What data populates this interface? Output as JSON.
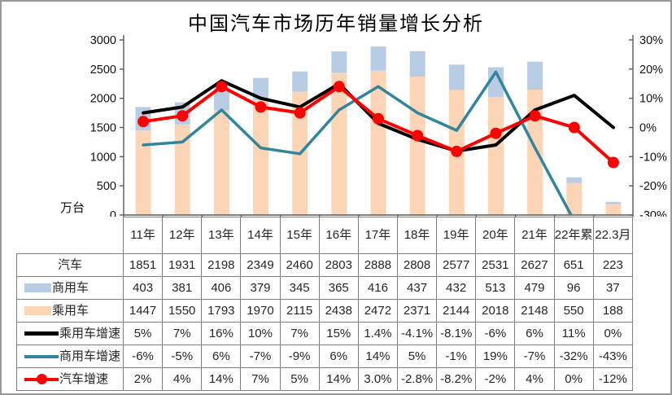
{
  "frame": {
    "title": "中国汽车市场历年销量增长分析",
    "unit_label": "万台"
  },
  "colors": {
    "passenger_bar": "#FBD5B5",
    "commercial_bar": "#B8CCE4",
    "passenger_growth_line": "#000000",
    "commercial_growth_line": "#31859C",
    "auto_growth_line": "#FF0000",
    "axis": "#595959",
    "table_border": "#7f7f7f",
    "text": "#262626"
  },
  "chart_data": {
    "type": "combo-stacked-bar-line",
    "title": "中国汽车市场历年销量增长分析",
    "categories": [
      "11年",
      "12年",
      "13年",
      "14年",
      "15年",
      "16年",
      "17年",
      "18年",
      "19年",
      "20年",
      "21年",
      "22年累",
      "22.3月"
    ],
    "left_axis": {
      "label": "万台",
      "min": 0,
      "max": 3000,
      "step": 500,
      "ticks": [
        "0",
        "500",
        "1000",
        "1500",
        "2000",
        "2500",
        "3000"
      ]
    },
    "right_axis": {
      "min": -30,
      "max": 30,
      "step": 10,
      "ticks": [
        "30%",
        "20%",
        "10%",
        "0%",
        "-10%",
        "-20%",
        "-30%"
      ]
    },
    "grid": false,
    "legend_position": "table-first-column",
    "bar_series": [
      {
        "name": "乘用车",
        "stack_order": 0,
        "color": "#FBD5B5",
        "values": [
          1447,
          1550,
          1793,
          1970,
          2115,
          2438,
          2472,
          2371,
          2144,
          2018,
          2148,
          550,
          188
        ]
      },
      {
        "name": "商用车",
        "stack_order": 1,
        "color": "#B8CCE4",
        "values": [
          403,
          381,
          406,
          379,
          345,
          365,
          416,
          437,
          432,
          513,
          479,
          96,
          37
        ]
      }
    ],
    "total_series": {
      "name": "汽车",
      "values": [
        1851,
        1931,
        2198,
        2349,
        2460,
        2803,
        2888,
        2808,
        2577,
        2531,
        2627,
        651,
        223
      ]
    },
    "line_series": [
      {
        "name": "乘用车增速",
        "color": "#000000",
        "width": 4,
        "marker": false,
        "values": [
          5,
          7,
          16,
          10,
          7,
          15,
          1.4,
          -4.1,
          -8.1,
          -6,
          6,
          11,
          0
        ]
      },
      {
        "name": "商用车增速",
        "color": "#31859C",
        "width": 3.5,
        "marker": false,
        "values": [
          -6,
          -5,
          6,
          -7,
          -9,
          6,
          14,
          5,
          -1,
          19,
          -7,
          -32,
          -43
        ]
      },
      {
        "name": "汽车增速",
        "color": "#FF0000",
        "width": 4,
        "marker": true,
        "values": [
          2,
          4,
          14,
          7,
          5,
          14,
          3,
          -2.8,
          -8.2,
          -2,
          4,
          0,
          -12
        ]
      }
    ]
  },
  "table": {
    "year_headers": [
      "11年",
      "12年",
      "13年",
      "14年",
      "15年",
      "16年",
      "17年",
      "18年",
      "19年",
      "20年",
      "21年",
      "22年累",
      "22.3月"
    ],
    "rows": [
      {
        "key": "auto-total",
        "label": "汽车",
        "swatch": "none",
        "values": [
          "1851",
          "1931",
          "2198",
          "2349",
          "2460",
          "2803",
          "2888",
          "2808",
          "2577",
          "2531",
          "2627",
          "651",
          "223"
        ]
      },
      {
        "key": "commercial",
        "label": "商用车",
        "swatch": "bar-blue",
        "values": [
          "403",
          "381",
          "406",
          "379",
          "345",
          "365",
          "416",
          "437",
          "432",
          "513",
          "479",
          "96",
          "37"
        ]
      },
      {
        "key": "passenger",
        "label": "乘用车",
        "swatch": "bar-peach",
        "values": [
          "1447",
          "1550",
          "1793",
          "1970",
          "2115",
          "2438",
          "2472",
          "2371",
          "2144",
          "2018",
          "2148",
          "550",
          "188"
        ]
      },
      {
        "key": "passenger-growth",
        "label": "乘用车增速",
        "swatch": "line-black",
        "values": [
          "5%",
          "7%",
          "16%",
          "10%",
          "7%",
          "15%",
          "1.4%",
          "-4.1%",
          "-8.1%",
          "-6%",
          "6%",
          "11%",
          "0%"
        ]
      },
      {
        "key": "commercial-growth",
        "label": "商用车增速",
        "swatch": "line-teal",
        "values": [
          "-6%",
          "-5%",
          "6%",
          "-7%",
          "-9%",
          "6%",
          "14%",
          "5%",
          "-1%",
          "19%",
          "-7%",
          "-32%",
          "-43%"
        ]
      },
      {
        "key": "auto-growth",
        "label": "汽车增速",
        "swatch": "line-red",
        "values": [
          "2%",
          "4%",
          "14%",
          "7%",
          "5%",
          "14%",
          "3.0%",
          "-2.8%",
          "-8.2%",
          "-2%",
          "4%",
          "0%",
          "-12%"
        ]
      }
    ]
  }
}
